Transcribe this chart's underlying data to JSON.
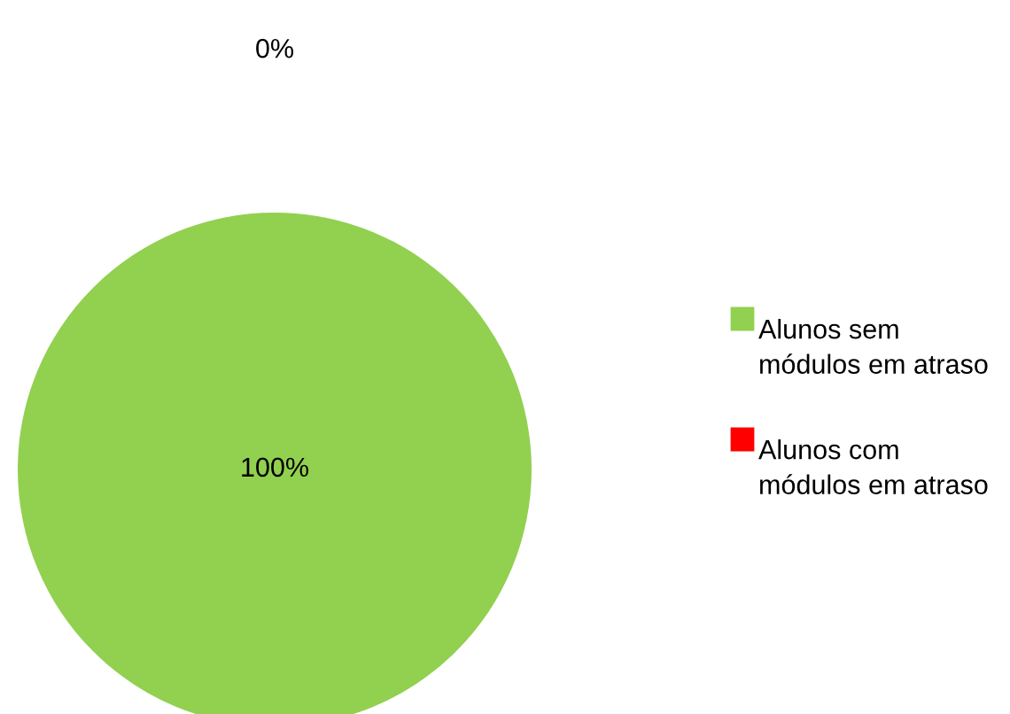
{
  "chart_data": {
    "type": "pie",
    "categories": [
      "Alunos sem módulos em atraso",
      "Alunos com módulos em atraso"
    ],
    "values": [
      100,
      0
    ],
    "colors": [
      "#92d050",
      "#ff0000"
    ],
    "value_labels": [
      "100%",
      "0%"
    ],
    "legend": "right"
  }
}
